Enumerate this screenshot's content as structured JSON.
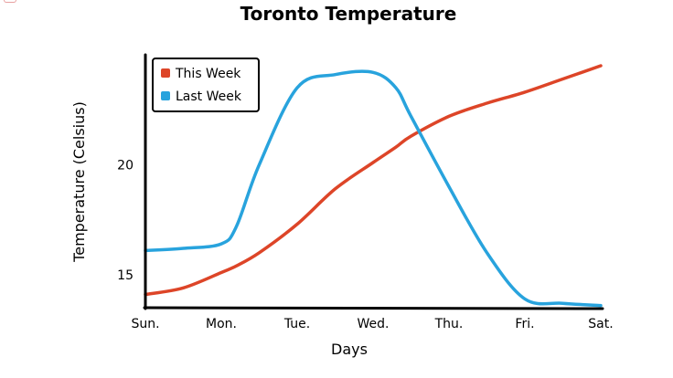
{
  "chart_data": {
    "type": "line",
    "title": "Toronto Temperature",
    "xlabel": "Days",
    "ylabel": "Temperature (Celsius)",
    "categories": [
      "Sun.",
      "Mon.",
      "Tue.",
      "Wed.",
      "Thu.",
      "Fri.",
      "Sat."
    ],
    "x": [
      0,
      0.5,
      1,
      1.2,
      1.5,
      2,
      2.5,
      3,
      3.3,
      3.5,
      4,
      4.5,
      5,
      5.5,
      6
    ],
    "series": [
      {
        "name": "This Week",
        "color": "#dd4528",
        "values": [
          14.1,
          14.4,
          15.1,
          15.4,
          16.0,
          17.3,
          18.9,
          20.1,
          20.8,
          21.3,
          22.2,
          22.8,
          23.3,
          23.9,
          24.5
        ]
      },
      {
        "name": "Last Week",
        "color": "#28a3dd",
        "values": [
          16.1,
          16.2,
          16.4,
          17.2,
          20.0,
          23.5,
          24.1,
          24.2,
          23.5,
          22.2,
          19.0,
          16.0,
          13.9,
          13.7,
          13.6
        ]
      }
    ],
    "yticks": [
      15,
      20
    ],
    "ylim": [
      13.5,
      25
    ],
    "xlim": [
      0,
      6
    ],
    "grid": false,
    "legend_position": "top-left"
  }
}
